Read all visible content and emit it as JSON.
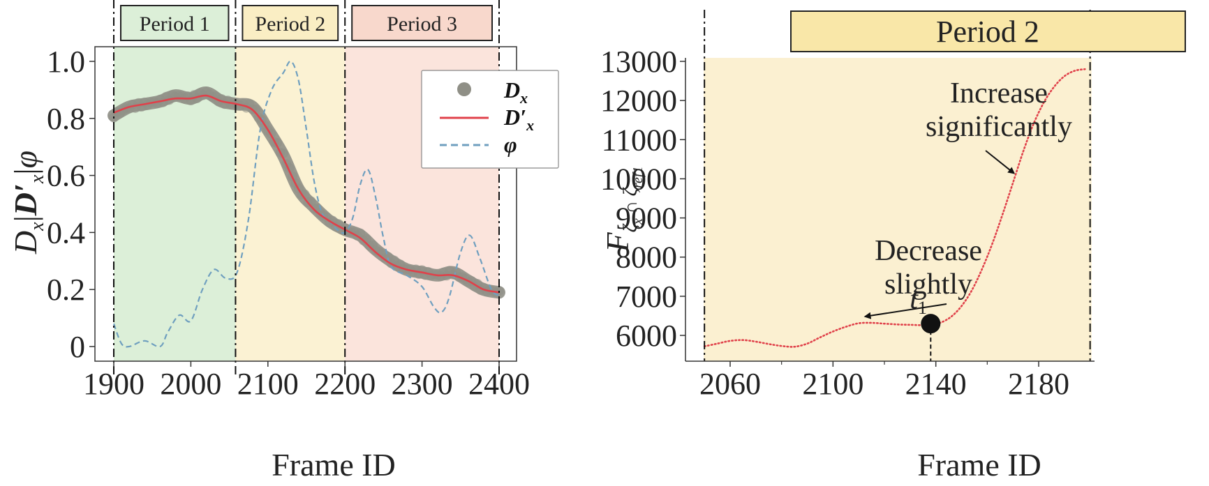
{
  "chart_data": [
    {
      "type": "line",
      "xlabel": "Frame ID",
      "ylabel": "D_x|D'_x|φ",
      "xlim": [
        1900,
        2400
      ],
      "ylim": [
        0,
        1.0
      ],
      "xticks": [
        1900,
        2000,
        2100,
        2200,
        2300,
        2400
      ],
      "yticks": [
        0,
        0.2,
        0.4,
        0.6,
        0.8,
        1.0
      ],
      "ytick_labels": [
        "0",
        "0.2",
        "0.4",
        "0.6",
        "0.8",
        "1.0"
      ],
      "grid": false,
      "legend_position": "top-right",
      "periods": [
        {
          "label": "Period 1",
          "start": 1900,
          "end": 2058,
          "color": "#dcefd8",
          "box": "#dcefd8"
        },
        {
          "label": "Period 2",
          "start": 2058,
          "end": 2200,
          "color": "#fbf2d3",
          "box": "#faeec4"
        },
        {
          "label": "Period 3",
          "start": 2200,
          "end": 2400,
          "color": "#fbe4dc",
          "box": "#f8d8cc"
        }
      ],
      "series": [
        {
          "name": "D_x",
          "legend_label": "D",
          "legend_sub": "x",
          "style": "scatter-band",
          "color": "#8f8f86",
          "x": [
            1900,
            1920,
            1940,
            1960,
            1980,
            2000,
            2020,
            2040,
            2060,
            2080,
            2100,
            2120,
            2140,
            2160,
            2180,
            2200,
            2220,
            2240,
            2260,
            2280,
            2300,
            2320,
            2340,
            2360,
            2380,
            2400
          ],
          "y": [
            0.81,
            0.84,
            0.85,
            0.86,
            0.88,
            0.87,
            0.89,
            0.86,
            0.85,
            0.84,
            0.76,
            0.67,
            0.55,
            0.49,
            0.44,
            0.41,
            0.39,
            0.34,
            0.3,
            0.27,
            0.26,
            0.25,
            0.26,
            0.23,
            0.2,
            0.19
          ]
        },
        {
          "name": "D'_x",
          "legend_label": "D′",
          "legend_sub": "x",
          "style": "solid",
          "color": "#e0414a",
          "x": [
            1900,
            1920,
            1940,
            1960,
            1980,
            2000,
            2020,
            2040,
            2060,
            2080,
            2100,
            2120,
            2140,
            2160,
            2180,
            2200,
            2220,
            2240,
            2260,
            2280,
            2300,
            2320,
            2340,
            2360,
            2380,
            2400
          ],
          "y": [
            0.82,
            0.84,
            0.85,
            0.86,
            0.87,
            0.87,
            0.88,
            0.86,
            0.85,
            0.83,
            0.76,
            0.66,
            0.55,
            0.48,
            0.44,
            0.41,
            0.38,
            0.33,
            0.29,
            0.27,
            0.26,
            0.25,
            0.25,
            0.23,
            0.2,
            0.19
          ]
        },
        {
          "name": "φ",
          "legend_label": "φ",
          "legend_sub": "",
          "style": "dashed",
          "color": "#6f9fbf",
          "x": [
            1900,
            1910,
            1920,
            1940,
            1960,
            1970,
            1985,
            2000,
            2015,
            2030,
            2045,
            2060,
            2075,
            2090,
            2105,
            2120,
            2130,
            2140,
            2150,
            2160,
            2170,
            2180,
            2190,
            2200,
            2210,
            2220,
            2230,
            2240,
            2250,
            2260,
            2280,
            2300,
            2315,
            2325,
            2335,
            2350,
            2362,
            2375,
            2390,
            2400
          ],
          "y": [
            0.08,
            0.01,
            0.0,
            0.02,
            0.0,
            0.05,
            0.11,
            0.09,
            0.2,
            0.27,
            0.24,
            0.26,
            0.45,
            0.76,
            0.9,
            0.96,
            1.0,
            0.93,
            0.76,
            0.58,
            0.47,
            0.44,
            0.41,
            0.4,
            0.45,
            0.57,
            0.62,
            0.52,
            0.38,
            0.28,
            0.25,
            0.21,
            0.14,
            0.12,
            0.17,
            0.33,
            0.39,
            0.31,
            0.2,
            0.18
          ]
        }
      ]
    },
    {
      "type": "line",
      "xlabel": "Frame ID",
      "ylabel": "F_{ζx ∩ ζref1}",
      "xlim": [
        2048,
        2202
      ],
      "ylim": [
        5300,
        13000
      ],
      "xticks": [
        2060,
        2100,
        2140,
        2180
      ],
      "yticks": [
        6000,
        7000,
        8000,
        9000,
        10000,
        11000,
        12000,
        13000
      ],
      "grid": false,
      "period": {
        "label": "Period 2",
        "start": 2050,
        "end": 2200,
        "color": "#fbf0d1",
        "box": "#f9e7a8"
      },
      "series": [
        {
          "name": "F",
          "style": "dotted",
          "color": "#e0414a",
          "x": [
            2050,
            2055,
            2060,
            2065,
            2070,
            2075,
            2080,
            2085,
            2090,
            2095,
            2100,
            2105,
            2110,
            2115,
            2120,
            2125,
            2130,
            2135,
            2138,
            2142,
            2146,
            2150,
            2154,
            2158,
            2162,
            2166,
            2170,
            2174,
            2178,
            2182,
            2186,
            2190,
            2194,
            2198
          ],
          "y": [
            5720,
            5790,
            5860,
            5880,
            5840,
            5780,
            5730,
            5710,
            5790,
            5950,
            6100,
            6220,
            6310,
            6320,
            6300,
            6280,
            6270,
            6260,
            6270,
            6330,
            6480,
            6750,
            7150,
            7700,
            8350,
            9100,
            9900,
            10700,
            11400,
            11950,
            12350,
            12620,
            12760,
            12800
          ]
        }
      ],
      "marker": {
        "label": "t",
        "sub": "1",
        "x": 2138,
        "y": 6300
      },
      "annotations": [
        {
          "line1": "Increase",
          "line2": "significantly",
          "target_x": 2172,
          "target_y": 10000
        },
        {
          "line1": "Decrease",
          "line2": "slightly",
          "target_x": 2112,
          "target_y": 6340
        }
      ]
    }
  ]
}
